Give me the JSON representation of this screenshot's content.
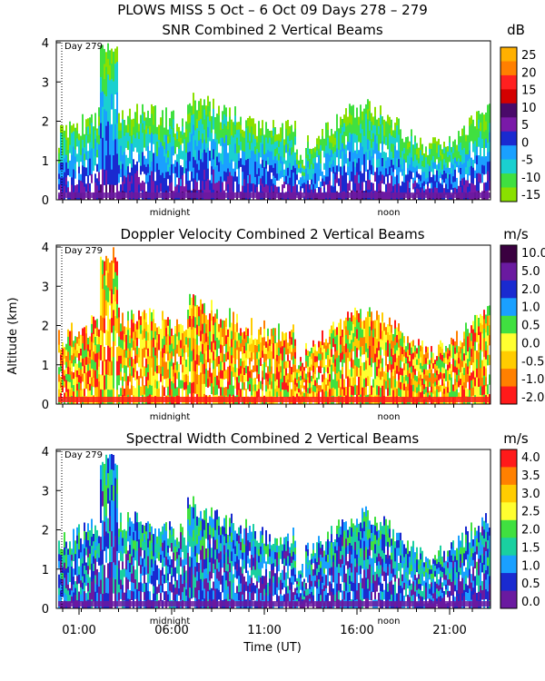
{
  "header": {
    "title": "PLOWS MISS   5 Oct –  6 Oct 09 Days 278 – 279"
  },
  "chart_data": [
    {
      "type": "heatmap",
      "title": "SNR Combined 2 Vertical Beams",
      "ylabel": "Altitude (km)",
      "ylim": [
        0,
        4
      ],
      "yticks": [
        "0",
        "1",
        "2",
        "3",
        "4"
      ],
      "colorbar": {
        "unit": "dB",
        "ticks": [
          "25",
          "20",
          "15",
          "10",
          "5",
          "0",
          "-5",
          "-10",
          "-15"
        ]
      },
      "annotations": {
        "day_marker": "Day 279",
        "midnight": "midnight",
        "noon": "noon"
      }
    },
    {
      "type": "heatmap",
      "title": "Doppler Velocity Combined 2 Vertical Beams",
      "ylabel": "Altitude (km)",
      "ylim": [
        0,
        4
      ],
      "yticks": [
        "0",
        "1",
        "2",
        "3",
        "4"
      ],
      "colorbar": {
        "unit": "m/s",
        "ticks": [
          "10.0",
          "5.0",
          "2.0",
          "1.0",
          "0.5",
          "0.0",
          "-0.5",
          "-1.0",
          "-2.0"
        ]
      },
      "annotations": {
        "day_marker": "Day 279",
        "midnight": "midnight",
        "noon": "noon"
      }
    },
    {
      "type": "heatmap",
      "title": "Spectral Width Combined 2 Vertical Beams",
      "ylabel": "Altitude (km)",
      "xlabel": "Time (UT)",
      "ylim": [
        0,
        4
      ],
      "yticks": [
        "0",
        "1",
        "2",
        "3",
        "4"
      ],
      "xticks": [
        "01:00",
        "06:00",
        "11:00",
        "16:00",
        "21:00"
      ],
      "colorbar": {
        "unit": "m/s",
        "ticks": [
          "4.0",
          "3.5",
          "3.0",
          "2.5",
          "2.0",
          "1.5",
          "1.0",
          "0.5",
          "0.0"
        ]
      },
      "annotations": {
        "day_marker": "Day 279",
        "midnight": "midnight",
        "noon": "noon"
      }
    }
  ],
  "colors": {
    "snr": [
      "#ffb000",
      "#ff7f00",
      "#ff2020",
      "#d40000",
      "#4a0a6a",
      "#7a1aa8",
      "#1a2ad0",
      "#1aa0ff",
      "#1ad0d0",
      "#40e040",
      "#8ae000"
    ],
    "doppler": [
      "#3a0040",
      "#6a1aa0",
      "#1a2ad0",
      "#1aa0ff",
      "#40e040",
      "#ffff30",
      "#ffcc00",
      "#ff8000",
      "#ff1a1a"
    ],
    "width": [
      "#ff1a1a",
      "#ff8000",
      "#ffcc00",
      "#ffff30",
      "#40e040",
      "#1ad0a0",
      "#1aa0ff",
      "#1a2ad0",
      "#6a1aa0"
    ]
  }
}
